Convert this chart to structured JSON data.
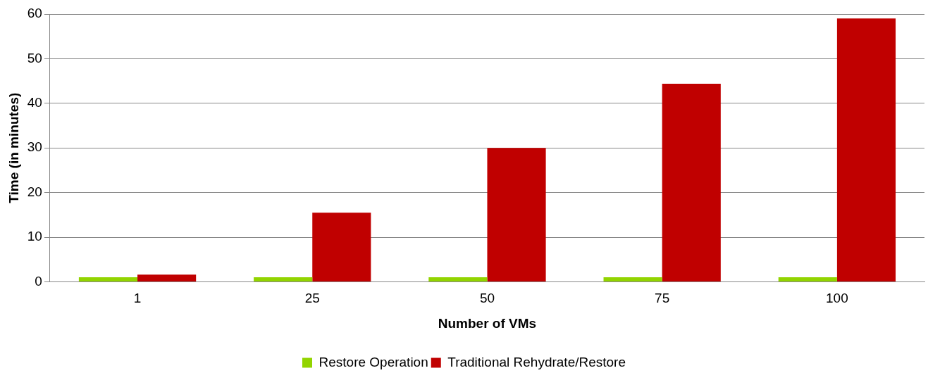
{
  "chart_data": {
    "type": "bar",
    "xlabel": "Number of VMs",
    "ylabel": "Time (in minutes)",
    "categories": [
      "1",
      "25",
      "50",
      "75",
      "100"
    ],
    "series": [
      {
        "name": "Restore Operation",
        "color": "#92d400",
        "values": [
          1.0,
          1.0,
          1.0,
          1.0,
          1.0
        ]
      },
      {
        "name": "Traditional Rehydrate/Restore",
        "color": "#c00000",
        "values": [
          1.6,
          15.5,
          30,
          44.4,
          59
        ]
      }
    ],
    "ylim": [
      0,
      60
    ],
    "yticks": [
      0,
      10,
      20,
      30,
      40,
      50,
      60
    ],
    "grid": "y",
    "legend": "bottom"
  }
}
